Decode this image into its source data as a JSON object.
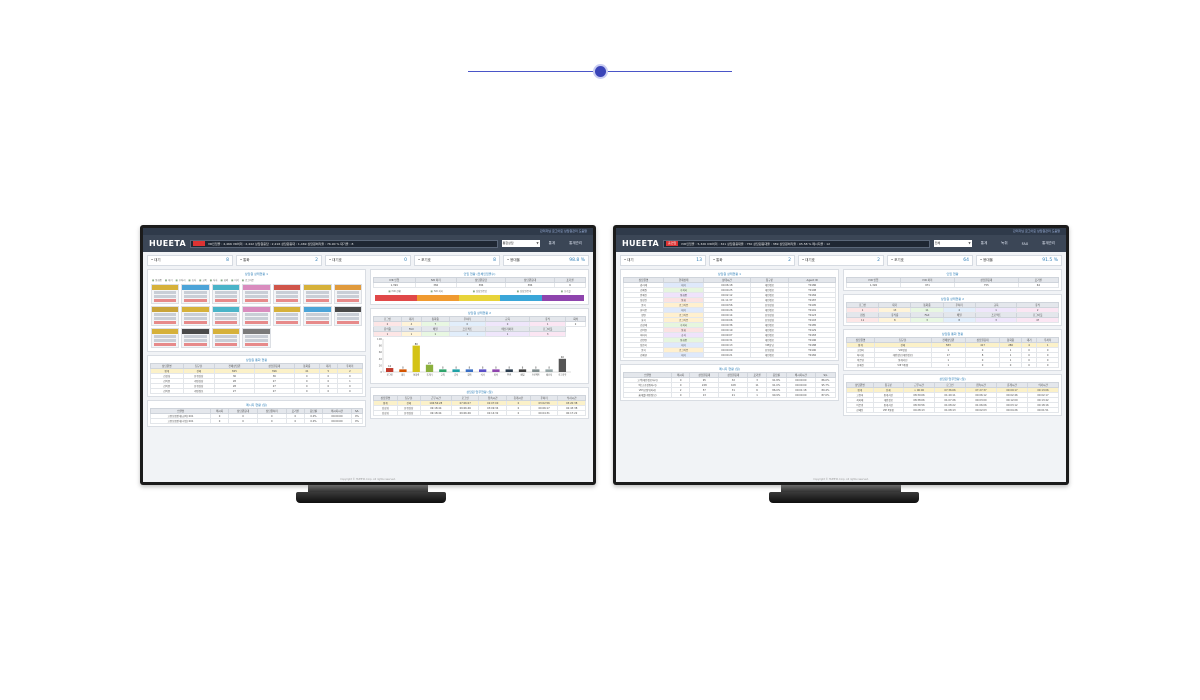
{
  "colors": {
    "divider": "#4a55c8",
    "appbar": "#3b4656",
    "accent": "#2f7fb8",
    "alert": "#d33333"
  },
  "left": {
    "brand": "HUEETA",
    "topstrip": "관리자님 로그아웃   상담원관리   도움말",
    "status_badge": "",
    "status_text": "VR인입콜 : 4,466   VR처리 : 2,442   상담원응답 : 2,216   상담원응대 : 1,469   상담원처리율 : 76.90 %   대기콜 : 8",
    "select_value": "통합상담",
    "nav": [
      "통계",
      "통계관리"
    ],
    "kpis": [
      {
        "label": "• 대기",
        "value": "8"
      },
      {
        "label": "• 통화",
        "value": "2"
      },
      {
        "label": "• 대기호",
        "value": "0"
      },
      {
        "label": "• 포기호",
        "value": "8"
      },
      {
        "label": "• 응대율",
        "value": "98.8 %"
      }
    ],
    "panel1_title": "상담원 상태현황 1",
    "legend": [
      "통화중",
      "대기",
      "후처리",
      "휴식",
      "교육",
      "식사",
      "회의",
      "이석",
      "로그아웃"
    ],
    "card_colors": [
      "#d6b13a",
      "#4ca4d8",
      "#4ab4c8",
      "#d98cbe",
      "#d0554a",
      "#d6b13a",
      "#e09a3c",
      "#c9a43a",
      "#d6b13a",
      "#4ab4c8",
      "#d98cbe",
      "#d6b13a",
      "#4ca4d8",
      "#4a4a4a",
      "#d6b13a",
      "#4a4a4a",
      "#d6b13a",
      "#7a7a7a"
    ],
    "panel2_title": "상담원 통화 현황",
    "table2_headers": [
      "상담원명",
      "팀구분",
      "전체상담원",
      "상담원응대",
      "통화중",
      "대기",
      "후처리"
    ],
    "table2_rows": [
      [
        "합계",
        "전체",
        "825",
        "396",
        "41",
        "5",
        "2"
      ],
      [
        "김상희",
        "유형상담",
        "36",
        "36",
        "0",
        "0",
        "0"
      ],
      [
        "김이연",
        "개인상담",
        "28",
        "27",
        "0",
        "0",
        "1"
      ],
      [
        "김이연",
        "유형상담",
        "28",
        "27",
        "0",
        "0",
        "0"
      ],
      [
        "김이연",
        "개인정보",
        "27",
        "27",
        "0",
        "0",
        "0"
      ]
    ],
    "panel3_title": "메시지 현황 (일)",
    "table3_headers": [
      "스킬명",
      "메시지",
      "상담원응대",
      "상담원처리",
      "포기콜",
      "응답률",
      "메시지시간",
      "S/L"
    ],
    "table3_rows": [
      [
        "고용보험안내(급여) 001",
        "0",
        "0",
        "0",
        "0",
        "0.0%",
        "00:00:00",
        "0%"
      ],
      [
        "고용보험안내(사업) 001",
        "0",
        "0",
        "0",
        "0",
        "0.0%",
        "00:00:00",
        "0%"
      ]
    ],
    "panel4_title": "인입 현황 (전체인입콜수)",
    "table4_headers": [
      "IVR 인입",
      "IVR 처리",
      "상담원응답",
      "상담원응대",
      "포기콜"
    ],
    "table4_row": [
      "1,399",
      "384",
      "384",
      "384",
      "6"
    ],
    "hbar_labels": [
      "IVR 현황",
      "IVR 처리",
      "상담원응답",
      "상담원응대",
      "포기콜"
    ],
    "panel5_title": "상담원 상태현황 2",
    "table5_headers": [
      "로그인",
      "대기",
      "통화중",
      "후처리",
      "교육",
      "휴식",
      "회의"
    ],
    "table5_row1": [
      "2",
      "4",
      "7",
      "0",
      "0",
      "1",
      "2"
    ],
    "table5_headers2": [
      "휴식중",
      "FAX",
      "메일",
      "프로젝트",
      "메신저처리",
      "로그아웃"
    ],
    "table5_row2": [
      "1",
      "1",
      "1",
      "1",
      "1",
      "3"
    ],
    "chart_data": {
      "type": "bar",
      "categories": [
        "로그인",
        "대기",
        "통화중",
        "후처리",
        "교육",
        "휴식",
        "회의",
        "식사",
        "이석",
        "FAX",
        "메일",
        "프로젝트",
        "메신저",
        "로그아웃"
      ],
      "values": [
        12,
        8,
        80,
        22,
        8,
        8,
        8,
        8,
        8,
        8,
        8,
        8,
        8,
        40
      ],
      "colors": [
        "#c0392b",
        "#d35400",
        "#d4c316",
        "#8bb03c",
        "#2ea36b",
        "#1fa1a6",
        "#3a6fc4",
        "#5a4fc6",
        "#8e44ad",
        "#2c3e50",
        "#3f3f3f",
        "#7f8c8d",
        "#95a5a6",
        "#555555"
      ],
      "ylim": [
        0,
        100
      ],
      "yticks": [
        "100",
        "80",
        "60",
        "40",
        "20",
        "0"
      ],
      "title": ""
    },
    "panel6_title": "상담원 업무현황 (일)",
    "table6_headers": [
      "상담원명",
      "팀구분",
      "근무시간",
      "로그인",
      "접속시간",
      "휴게시간",
      "후처리",
      "식사시간"
    ],
    "table6_rows": [
      [
        "합계",
        "전체",
        "106:56:28",
        "07:06:07",
        "02:07:00",
        "0",
        "03:02:56",
        "03:20:38"
      ],
      [
        "김상희",
        "유형상담",
        "09:18:44",
        "09:06:46",
        "03:09:34",
        "0",
        "00:06:17",
        "02:43:38"
      ],
      [
        "김상희",
        "유형상담",
        "09:18:44",
        "09:06:46",
        "02:14:32",
        "0",
        "00:04:31",
        "00:17:22"
      ]
    ],
    "footer": "Copyright © HUEETA Corp. All rights reserved."
  },
  "right": {
    "brand": "HUEETA",
    "topstrip": "관리자님 로그아웃   상담원관리   도움말",
    "status_badge": "홈인입",
    "status_text": "IVR인입콜 : 5,326   IVR처리 : 321   상담원응대율 : 750   상담원응대율 : 389   상담원처리율 : 95.58 %   메시지콜 : 12",
    "select_value": "전체",
    "nav": [
      "통계",
      "녹취",
      "FAX",
      "통계관리"
    ],
    "kpis": [
      {
        "label": "• 대기",
        "value": "13"
      },
      {
        "label": "• 통화",
        "value": "2"
      },
      {
        "label": "• 대기호",
        "value": "2"
      },
      {
        "label": "• 포기호",
        "value": "64"
      },
      {
        "label": "• 응대율",
        "value": "91.5 %"
      }
    ],
    "panel1_title": "상담원 상태현황 1",
    "table1_headers": [
      "상담원명",
      "현재상태",
      "상태시간",
      "팀구분",
      "Agent ID"
    ],
    "table1_rows": [
      [
        "강리혜",
        "대기",
        "00:06:18",
        "개인정보",
        "T0186"
      ],
      [
        "김혜원",
        "후처리",
        "00:00:25",
        "개인정보",
        "T0198"
      ],
      [
        "안혜진",
        "통화중",
        "00:02:12",
        "개인정보",
        "T0184"
      ],
      [
        "정상진",
        "통화",
        "01:11:37",
        "개인정보",
        "T0187"
      ],
      [
        "윤지",
        "로그아웃",
        "00:00:56",
        "유형상담",
        "T0195"
      ],
      [
        "한미봉",
        "대기",
        "00:00:26",
        "개인정보",
        "T0191"
      ],
      [
        "정연",
        "로그아웃",
        "00:00:14",
        "유형상담",
        "T0123"
      ],
      [
        "홍지",
        "로그아웃",
        "00:00:06",
        "유형상담",
        "T0193"
      ],
      [
        "김상혜",
        "후처리",
        "00:00:36",
        "개인정보",
        "T0185"
      ],
      [
        "김이연",
        "통화",
        "00:00:19",
        "개인정보",
        "T0129"
      ],
      [
        "최미자",
        "휴식",
        "00:09:07",
        "개인정보",
        "T0183"
      ],
      [
        "김연연",
        "통화중",
        "00:00:31",
        "개인정보",
        "T0196"
      ],
      [
        "정순미",
        "대기",
        "00:00:13",
        "VIP상담",
        "T0188"
      ],
      [
        "윤지",
        "로그아웃",
        "00:00:09",
        "유형상담",
        "T0190"
      ],
      [
        "김혜현",
        "대기",
        "00:00:21",
        "개인정보",
        "T0182"
      ]
    ],
    "row_colors": [
      "#dfe9fb",
      "#e6f6de",
      "#efe3fb",
      "#fbe2e2",
      "#fff0cf",
      "#dfe9fb",
      "#fff0cf",
      "#fff0cf",
      "#e6f6de",
      "#fbe2e2",
      "#efe3fb",
      "#e6f6de",
      "#dfe9fb",
      "#fff0cf",
      "#dfe9fb"
    ],
    "panel2_title": "메시지 현황 (일)",
    "table2_headers": [
      "스킬명",
      "메시지",
      "상담원응대",
      "상담원응대",
      "포기콜",
      "응답률",
      "메시지시간",
      "S/L"
    ],
    "table2_rows": [
      [
        "고객(개인정보처리)",
        "0",
        "95",
        "32",
        "3",
        "91.8%",
        "00:00:00",
        "86.0%"
      ],
      [
        "엑스(공정위처리)",
        "0",
        "228",
        "108",
        "11",
        "91.0%",
        "00:00:00",
        "95.7%"
      ],
      [
        "VIP(공정위처리)",
        "2",
        "57",
        "31",
        "6",
        "86.0%",
        "00:01:18",
        "89.4%"
      ],
      [
        "홈개발(개인정보)",
        "0",
        "13",
        "21",
        "1",
        "90.9%",
        "00:00:00",
        "87.0%"
      ]
    ],
    "panel3_title": "인입 현황",
    "table3_headers": [
      "IVR 인입",
      "IVR 처리",
      "상담원응대",
      "포기콜"
    ],
    "table3_row": [
      "1,326",
      "971",
      "755",
      "64"
    ],
    "panel4_title": "상담원 상태현황 2",
    "table4_headers": [
      "로그인",
      "대기",
      "통화중",
      "후처리",
      "교육",
      "휴식"
    ],
    "table4_row1": [
      "1",
      "13",
      "11",
      "4",
      "1",
      "2"
    ],
    "table4_headers2": [
      "점심",
      "휴식중",
      "FAX",
      "메일",
      "프로젝트",
      "로그아웃"
    ],
    "table4_row2": [
      "11",
      "8",
      "3",
      "8",
      "3",
      "47"
    ],
    "panel5_title": "상담원 통화 현황",
    "table5_headers": [
      "상담원명",
      "팀구분",
      "전체상담원",
      "상담원응대",
      "통화중",
      "대기",
      "후처리"
    ],
    "table5_rows": [
      [
        "합계",
        "전체",
        "583",
        "417",
        "286",
        "4",
        "1"
      ],
      [
        "고연미",
        "VIP상담",
        "1",
        "0",
        "1",
        "0",
        "0"
      ],
      [
        "최미희",
        "개인정보(개인정보)",
        "17",
        "8",
        "1",
        "0",
        "0"
      ],
      [
        "이은영",
        "통계서선",
        "1",
        "0",
        "1",
        "0",
        "0"
      ],
      [
        "한혜진",
        "VIP 3통합",
        "1",
        "0",
        "0",
        "0",
        "0"
      ]
    ],
    "panel6_title": "상담원 업무현황 (일)",
    "table6_headers": [
      "상담원명",
      "팀구분",
      "근무시간",
      "로그인",
      "접속시간",
      "휴게시간",
      "식사시간"
    ],
    "table6_rows": [
      [
        "합계",
        "전체",
        "> 06:00",
        "07:36:06",
        "07:27:37",
        "09:09:17",
        "09:13:06"
      ],
      [
        "고연미",
        "통계서선",
        "08:39:06",
        "01:49:11",
        "00:06:12",
        "00:02:46",
        "00:02:17"
      ],
      [
        "최미혜",
        "개인정보",
        "08:38:06",
        "01:07:26",
        "00:03:00",
        "00:12:09",
        "00:13:42"
      ],
      [
        "이은영",
        "통계서선",
        "08:39:56",
        "01:08:22",
        "01:06:06",
        "00:03:12",
        "00:18:16"
      ],
      [
        "한혜진",
        "VIP 3통합",
        "00:28:13",
        "01:08:13",
        "00:02:03",
        "00:04:26",
        "00:01:51"
      ]
    ],
    "footer": "Copyright © HUEETA Corp. All rights reserved."
  }
}
